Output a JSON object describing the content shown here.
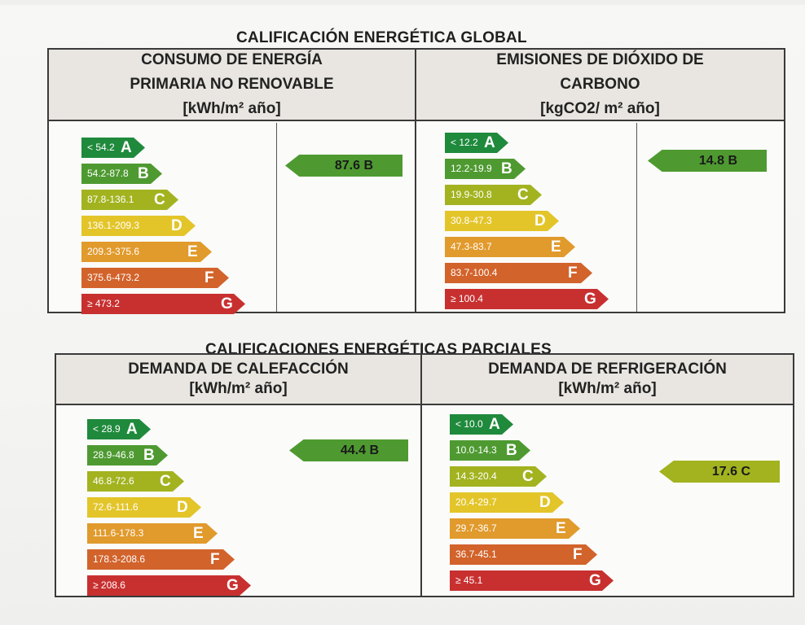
{
  "global": {
    "title": "CALIFICACIÓN ENERGÉTICA GLOBAL",
    "consumo": {
      "header_line1": "CONSUMO DE ENERGÍA",
      "header_line2": "PRIMARIA NO RENOVABLE",
      "unit": "[kWh/m² año]",
      "scale": [
        "< 54.2",
        "54.2-87.8",
        "87.8-136.1",
        "136.1-209.3",
        "209.3-375.6",
        "375.6-473.2",
        "≥ 473.2"
      ],
      "value_label": "87.6 B",
      "value": 87.6,
      "rating": "B"
    },
    "emisiones": {
      "header_line1": "EMISIONES DE DIÓXIDO DE",
      "header_line2": "CARBONO",
      "unit": "[kgCO2/ m² año]",
      "scale": [
        "< 12.2",
        "12.2-19.9",
        "19.9-30.8",
        "30.8-47.3",
        "47.3-83.7",
        "83.7-100.4",
        "≥ 100.4"
      ],
      "value_label": "14.8 B",
      "value": 14.8,
      "rating": "B"
    }
  },
  "parciales": {
    "title": "CALIFICACIONES ENERGÉTICAS PARCIALES",
    "calefaccion": {
      "header_line1": "DEMANDA DE CALEFACCIÓN",
      "unit": "[kWh/m² año]",
      "scale": [
        "< 28.9",
        "28.9-46.8",
        "46.8-72.6",
        "72.6-111.6",
        "111.6-178.3",
        "178.3-208.6",
        "≥ 208.6"
      ],
      "value_label": "44.4 B",
      "value": 44.4,
      "rating": "B"
    },
    "refrigeracion": {
      "header_line1": "DEMANDA DE REFRIGERACIÓN",
      "unit": "[kWh/m² año]",
      "scale": [
        "< 10.0",
        "10.0-14.3",
        "14.3-20.4",
        "20.4-29.7",
        "29.7-36.7",
        "36.7-45.1",
        "≥ 45.1"
      ],
      "value_label": "17.6 C",
      "value": 17.6,
      "rating": "C"
    }
  },
  "rating_letters": [
    "A",
    "B",
    "C",
    "D",
    "E",
    "F",
    "G"
  ],
  "rating_colors": [
    "#1f8a3c",
    "#4e9a31",
    "#a2b31f",
    "#e3c52a",
    "#e19a2c",
    "#d2632b",
    "#c83030"
  ],
  "indicator_colors": {
    "B": "#4e9a31",
    "C": "#a2b31f"
  }
}
